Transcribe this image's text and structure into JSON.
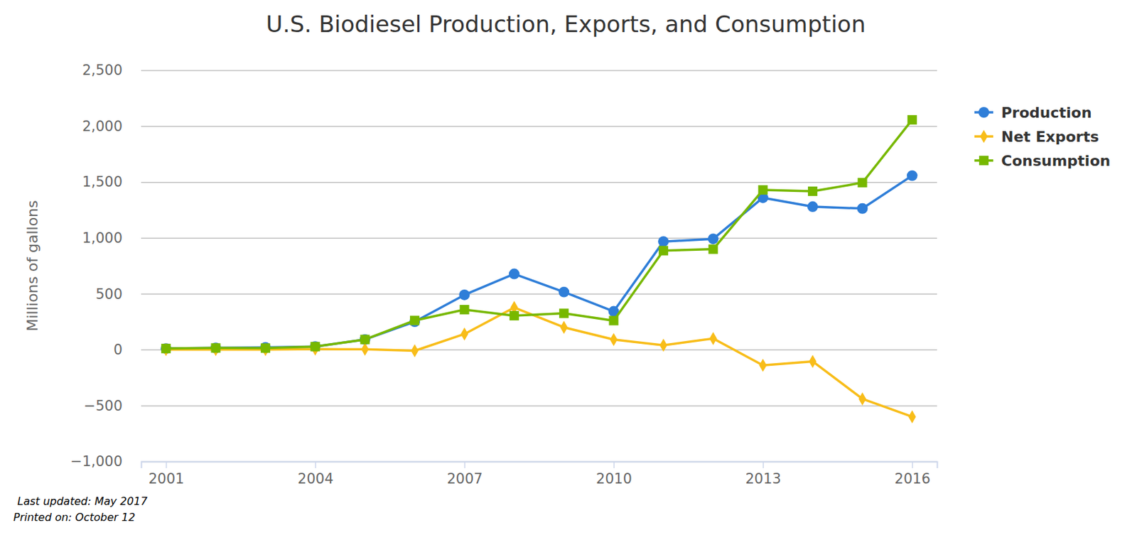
{
  "chart_data": {
    "type": "line",
    "title": "U.S. Biodiesel Production, Exports, and Consumption",
    "y_label": "Millions of gallons",
    "annotations": [
      "Last updated: May 2017",
      "Printed on: October 12"
    ],
    "x": [
      2001,
      2002,
      2003,
      2004,
      2005,
      2006,
      2007,
      2008,
      2009,
      2010,
      2011,
      2012,
      2013,
      2014,
      2015,
      2016
    ],
    "series": [
      {
        "name": "Production",
        "color": "#2f7ed8",
        "marker": "circle",
        "values": [
          10,
          15,
          20,
          28,
          91,
          250,
          490,
          678,
          516,
          343,
          967,
          991,
          1359,
          1279,
          1263,
          1557
        ]
      },
      {
        "name": "Net Exports",
        "color": "#f8bd19",
        "marker": "diamond",
        "values": [
          0,
          0,
          0,
          5,
          3,
          -10,
          140,
          377,
          200,
          90,
          40,
          100,
          -140,
          -105,
          -440,
          -600
        ]
      },
      {
        "name": "Consumption",
        "color": "#77b800",
        "marker": "square",
        "values": [
          10,
          15,
          14,
          27,
          91,
          261,
          358,
          304,
          325,
          260,
          886,
          899,
          1429,
          1417,
          1494,
          2056
        ]
      }
    ],
    "xlim": [
      2000.5,
      2016.5
    ],
    "xticks": [
      2001,
      2004,
      2007,
      2010,
      2013,
      2016
    ],
    "ylim": [
      -1000,
      2500
    ],
    "yticks": [
      {
        "value": -1000,
        "label": "−1,000"
      },
      {
        "value": -500,
        "label": "−500"
      },
      0,
      500,
      {
        "value": 1000,
        "label": "1,000"
      },
      {
        "value": 1500,
        "label": "1,500"
      },
      {
        "value": 2000,
        "label": "2,000"
      },
      {
        "value": 2500,
        "label": "2,500"
      }
    ],
    "grid": true,
    "legend": "top-right"
  }
}
